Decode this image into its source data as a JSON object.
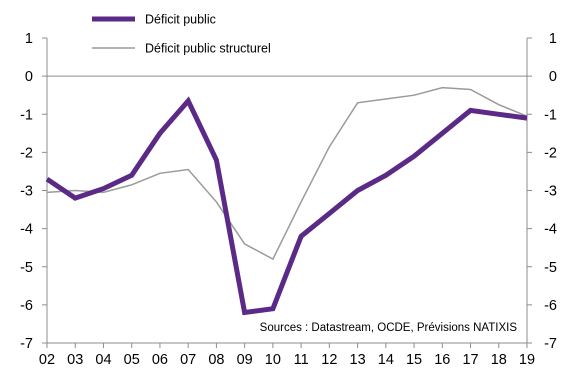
{
  "chart_data": {
    "type": "line",
    "x": [
      "02",
      "03",
      "04",
      "05",
      "06",
      "07",
      "08",
      "09",
      "10",
      "11",
      "12",
      "13",
      "14",
      "15",
      "16",
      "17",
      "18",
      "19"
    ],
    "series": [
      {
        "name": "Déficit public",
        "color": "#5b2a86",
        "values": [
          -2.7,
          -3.2,
          -2.95,
          -2.6,
          -1.5,
          -0.65,
          -2.2,
          -6.2,
          -6.1,
          -4.2,
          -3.6,
          -3.0,
          -2.6,
          -2.1,
          -1.5,
          -0.9,
          -1.0,
          -1.1
        ]
      },
      {
        "name": "Déficit public structurel",
        "color": "#9a9a9a",
        "values": [
          -3.05,
          -3.0,
          -3.05,
          -2.85,
          -2.55,
          -2.45,
          -3.3,
          -4.4,
          -4.8,
          -3.3,
          -1.85,
          -0.7,
          -0.6,
          -0.5,
          -0.3,
          -0.35,
          -0.75,
          -1.05
        ]
      }
    ],
    "ylim": [
      -7,
      1
    ],
    "yticks": [
      "1",
      "0",
      "-1",
      "-2",
      "-3",
      "-4",
      "-5",
      "-6",
      "-7"
    ],
    "title": "",
    "xlabel": "",
    "ylabel": "",
    "legend_position": "top-left",
    "grid": false,
    "zero_line": true,
    "annotation": "Sources : Datastream,  OCDE, Prévisions NATIXIS"
  }
}
